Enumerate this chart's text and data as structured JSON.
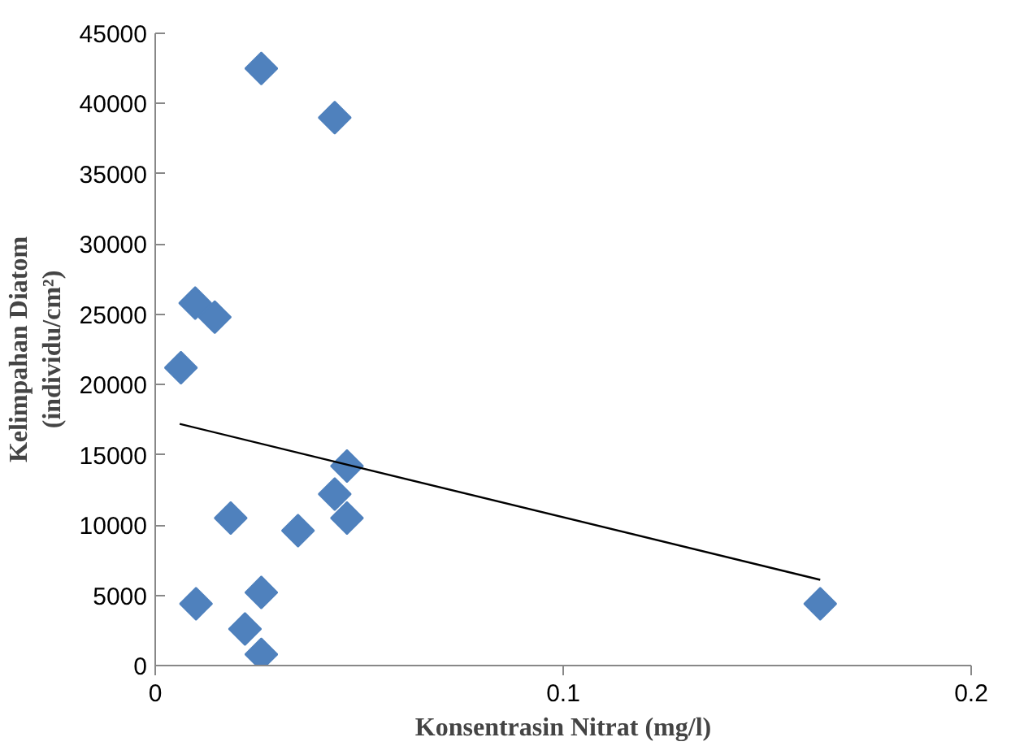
{
  "chart_data": {
    "type": "scatter",
    "xlabel": "Konsentrasin Nitrat (mg/l)",
    "ylabel": "Kelimpahan Diatom\n(individu/cm²)",
    "xlim": [
      0,
      0.2
    ],
    "xticks": [
      0,
      0.1,
      0.2
    ],
    "ylim": [
      0,
      45000
    ],
    "yticks": [
      0,
      5000,
      10000,
      15000,
      20000,
      25000,
      30000,
      35000,
      40000,
      45000
    ],
    "grid": false,
    "series": [
      {
        "marker": "diamond",
        "color": "#4f81bd",
        "x": [
          0.026,
          0.044,
          0.0098,
          0.0146,
          0.0063,
          0.047,
          0.044,
          0.047,
          0.0185,
          0.035,
          0.01,
          0.026,
          0.022,
          0.026,
          0.163
        ],
        "values": [
          42500,
          39000,
          25800,
          24800,
          21200,
          14200,
          12200,
          10500,
          10500,
          9600,
          4400,
          5200,
          2600,
          800,
          4400
        ]
      },
      {
        "type": "line",
        "marker": "none",
        "color": "#000000",
        "x": [
          0.006,
          0.163
        ],
        "values": [
          17200,
          6100
        ]
      }
    ]
  }
}
